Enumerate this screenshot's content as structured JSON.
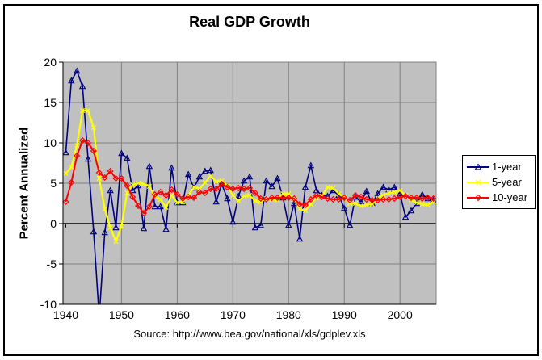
{
  "chart": {
    "title": "Real GDP Growth",
    "y_axis_title": "Percent Annualized",
    "source_note": "Source: http://www.bea.gov/national/xls/gdplev.xls",
    "colors": {
      "plot_background": "#C0C0C0",
      "gridline": "#808080",
      "zero_line": "#000000",
      "axis_line": "#000000",
      "frame_border": "#000000",
      "legend_background": "#FFFFFF"
    }
  },
  "chart_data": {
    "type": "line",
    "title": "Real GDP Growth",
    "xlabel": "",
    "ylabel": "Percent Annualized",
    "xlim": [
      1939.5,
      2006.5
    ],
    "ylim": [
      -10,
      20
    ],
    "xticks": [
      1940,
      1950,
      1960,
      1970,
      1980,
      1990,
      2000
    ],
    "yticks": [
      20,
      15,
      10,
      5,
      0,
      -5,
      -10
    ],
    "grid": true,
    "legend_position": "right-outside",
    "x": [
      1940,
      1941,
      1942,
      1943,
      1944,
      1945,
      1946,
      1947,
      1948,
      1949,
      1950,
      1951,
      1952,
      1953,
      1954,
      1955,
      1956,
      1957,
      1958,
      1959,
      1960,
      1961,
      1962,
      1963,
      1964,
      1965,
      1966,
      1967,
      1968,
      1969,
      1970,
      1971,
      1972,
      1973,
      1974,
      1975,
      1976,
      1977,
      1978,
      1979,
      1980,
      1981,
      1982,
      1983,
      1984,
      1985,
      1986,
      1987,
      1988,
      1989,
      1990,
      1991,
      1992,
      1993,
      1994,
      1995,
      1996,
      1997,
      1998,
      1999,
      2000,
      2001,
      2002,
      2003,
      2004,
      2005,
      2006
    ],
    "series": [
      {
        "name": "1-year",
        "color": "#000080",
        "marker": "triangle",
        "values": [
          8.8,
          17.7,
          18.9,
          17.0,
          8.0,
          -1.0,
          -11.6,
          -1.1,
          4.1,
          -0.5,
          8.7,
          8.1,
          4.1,
          4.7,
          -0.6,
          7.1,
          2.1,
          2.1,
          -0.7,
          6.9,
          2.6,
          2.6,
          6.1,
          4.4,
          5.8,
          6.5,
          6.6,
          2.7,
          4.9,
          3.1,
          0.2,
          3.4,
          5.3,
          5.8,
          -0.5,
          -0.2,
          5.3,
          4.6,
          5.6,
          3.2,
          -0.2,
          2.5,
          -1.9,
          4.5,
          7.2,
          4.1,
          3.5,
          3.4,
          4.1,
          3.5,
          1.9,
          -0.2,
          3.3,
          2.7,
          4.0,
          2.5,
          3.7,
          4.5,
          4.2,
          4.5,
          3.7,
          0.8,
          1.6,
          2.5,
          3.6,
          3.1,
          2.9
        ]
      },
      {
        "name": "5-year",
        "color": "#FFFF00",
        "marker": "x",
        "values": [
          6.2,
          7.0,
          9.7,
          14.0,
          14.0,
          11.9,
          5.6,
          1.8,
          -0.5,
          -2.2,
          -0.3,
          3.8,
          4.8,
          5.0,
          4.9,
          4.6,
          3.4,
          3.0,
          2.0,
          3.5,
          2.6,
          2.7,
          3.5,
          4.5,
          4.3,
          5.1,
          5.9,
          5.2,
          5.3,
          4.7,
          3.5,
          2.8,
          3.4,
          3.5,
          2.8,
          2.7,
          3.1,
          3.0,
          2.9,
          3.7,
          3.7,
          3.1,
          1.8,
          1.6,
          2.4,
          3.2,
          3.4,
          4.5,
          4.4,
          3.7,
          3.3,
          2.5,
          2.5,
          2.2,
          2.3,
          2.4,
          3.2,
          3.5,
          3.8,
          3.9,
          4.1,
          3.5,
          2.9,
          2.6,
          2.4,
          2.3,
          2.7
        ]
      },
      {
        "name": "10-year",
        "color": "#FF0000",
        "marker": "diamond",
        "values": [
          2.7,
          5.1,
          8.4,
          10.3,
          10.0,
          9.0,
          6.3,
          5.7,
          6.5,
          5.6,
          5.6,
          4.7,
          3.3,
          2.2,
          1.3,
          2.1,
          3.6,
          3.9,
          3.5,
          4.2,
          3.6,
          3.1,
          3.3,
          3.2,
          3.9,
          3.8,
          4.3,
          4.3,
          4.9,
          4.5,
          4.3,
          4.4,
          4.3,
          4.4,
          3.8,
          3.1,
          3.0,
          3.2,
          3.2,
          3.2,
          3.2,
          3.1,
          2.4,
          2.3,
          3.0,
          3.5,
          3.3,
          3.1,
          3.0,
          3.0,
          3.2,
          2.9,
          3.5,
          3.3,
          3.0,
          2.9,
          2.9,
          3.0,
          3.0,
          3.1,
          3.3,
          3.4,
          3.2,
          3.2,
          3.1,
          3.2,
          3.1
        ]
      }
    ]
  }
}
